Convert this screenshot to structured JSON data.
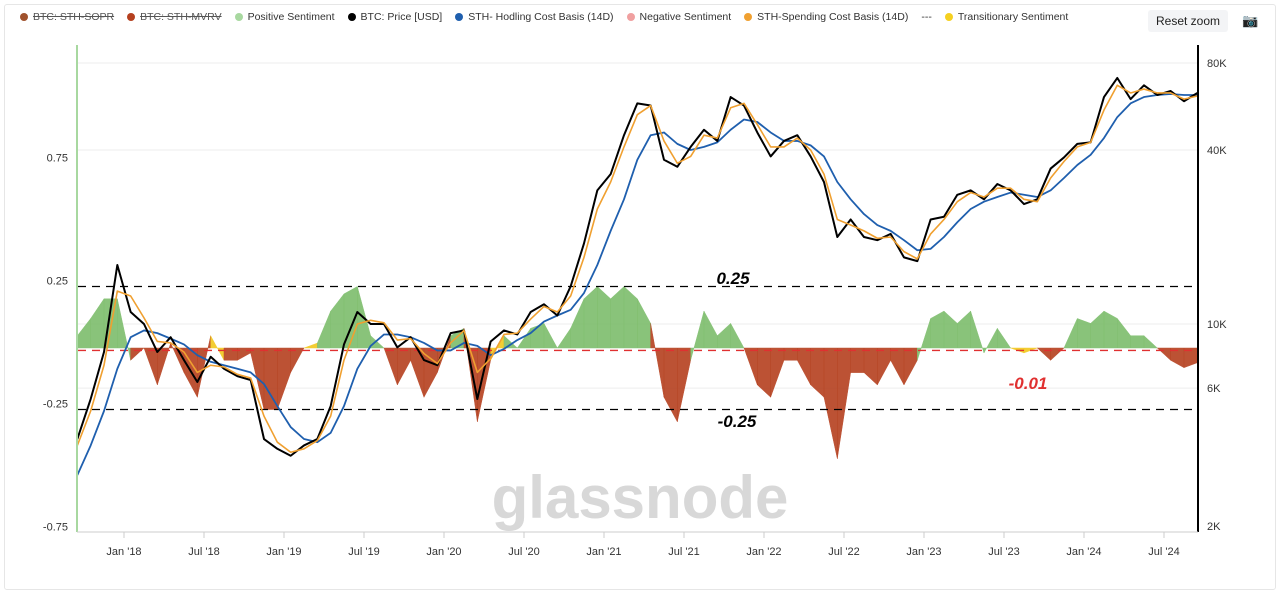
{
  "legend": [
    {
      "label": "BTC: STH-SOPR",
      "color": "#a0522d",
      "hidden": true
    },
    {
      "label": "BTC: STH-MVRV",
      "color": "#b5401f",
      "hidden": true
    },
    {
      "label": "Positive Sentiment",
      "color": "#a8d8a0"
    },
    {
      "label": "BTC: Price [USD]",
      "color": "#000000"
    },
    {
      "label": "STH- Hodling Cost Basis (14D)",
      "color": "#1f5fae"
    },
    {
      "label": "Negative Sentiment",
      "color": "#f0a0a0"
    },
    {
      "label": "STH-Spending Cost Basis (14D)",
      "color": "#f0a030"
    },
    {
      "label": "---",
      "color": ""
    },
    {
      "label": "Transitionary Sentiment",
      "color": "#f5d020"
    }
  ],
  "toolbar": {
    "reset_zoom": "Reset zoom",
    "camera_icon": "camera-icon"
  },
  "watermark": "glassnode",
  "chart_data": {
    "type": "line",
    "start_month": "2017-09",
    "x_ticks": [
      "Jan '18",
      "Jul '18",
      "Jan '19",
      "Jul '19",
      "Jan '20",
      "Jul '20",
      "Jan '21",
      "Jul '21",
      "Jan '22",
      "Jul '22",
      "Jan '23",
      "Jul '23",
      "Jan '24",
      "Jul '24"
    ],
    "left_axis": {
      "ticks": [
        "0.75",
        "0.25",
        "-0.25",
        "-0.75"
      ],
      "values": [
        0.75,
        0.25,
        -0.25,
        -0.75
      ]
    },
    "right_axis": {
      "scale": "log",
      "ticks": [
        "80K",
        "40K",
        "10K",
        "6K",
        "2K"
      ],
      "values": [
        80000,
        40000,
        10000,
        6000,
        2000
      ]
    },
    "reference_lines": [
      {
        "value": 0.25,
        "label": "0.25",
        "color": "#000000"
      },
      {
        "value": -0.25,
        "label": "-0.25",
        "color": "#000000"
      },
      {
        "value": -0.01,
        "label": "-0.01",
        "color": "#e03030"
      }
    ],
    "colors": {
      "positive": "#7dbd6c",
      "negative": "#b5401f",
      "transitional": "#f2c81e",
      "price": "#000000",
      "hodling": "#1f5fae",
      "spending": "#f0a030"
    },
    "price": [
      4000,
      5500,
      8000,
      16000,
      11000,
      10000,
      8000,
      9000,
      7500,
      6300,
      7700,
      7000,
      6600,
      6400,
      4000,
      3700,
      3500,
      3800,
      4000,
      5200,
      8500,
      11000,
      10000,
      10000,
      8300,
      9000,
      7500,
      7200,
      9300,
      9500,
      5500,
      8700,
      9500,
      9200,
      11000,
      11700,
      10700,
      13500,
      19000,
      29000,
      33000,
      45000,
      58000,
      57000,
      37000,
      35000,
      41000,
      47000,
      43000,
      61000,
      57000,
      46000,
      38000,
      43000,
      45000,
      38000,
      31000,
      20000,
      23000,
      20000,
      19500,
      20500,
      17000,
      16500,
      23000,
      23500,
      28000,
      29000,
      27000,
      30500,
      29000,
      26000,
      27000,
      34500,
      37700,
      42000,
      42500,
      61000,
      71000,
      60000,
      67000,
      62000,
      64000,
      59000,
      63000
    ],
    "spending_cost_basis": [
      3800,
      5000,
      7200,
      13000,
      12500,
      10500,
      8700,
      8600,
      8000,
      6800,
      7200,
      7100,
      6700,
      6500,
      4800,
      3900,
      3600,
      3700,
      3950,
      4800,
      7500,
      10000,
      10300,
      10100,
      8800,
      8900,
      7900,
      7300,
      8600,
      9500,
      6800,
      7600,
      9200,
      9300,
      10400,
      11500,
      11000,
      12500,
      17000,
      25000,
      31000,
      41000,
      53000,
      57000,
      43000,
      36000,
      38000,
      45000,
      44000,
      56000,
      58000,
      49000,
      41000,
      41000,
      44000,
      40000,
      33000,
      23000,
      22000,
      21000,
      19800,
      20000,
      17800,
      16800,
      20500,
      23000,
      26500,
      28500,
      27500,
      29500,
      29500,
      27000,
      26500,
      32000,
      36500,
      41000,
      42500,
      55000,
      67000,
      63000,
      65000,
      63000,
      63000,
      60000,
      61500
    ],
    "hodling_cost_basis": [
      3000,
      3800,
      5000,
      7000,
      9000,
      9500,
      9300,
      8900,
      8500,
      7800,
      7400,
      7200,
      7000,
      6800,
      6200,
      5200,
      4400,
      4000,
      3900,
      4200,
      5200,
      7000,
      8400,
      9200,
      9200,
      9000,
      8600,
      8100,
      8100,
      8600,
      8400,
      7800,
      8200,
      8800,
      9300,
      10200,
      10700,
      11200,
      12800,
      16000,
      21000,
      27000,
      37000,
      45000,
      46000,
      42000,
      40000,
      41000,
      42500,
      47000,
      51000,
      50000,
      46000,
      43000,
      43000,
      41500,
      38000,
      31000,
      27000,
      24000,
      22000,
      21000,
      19500,
      18000,
      18200,
      20000,
      22500,
      25000,
      26500,
      27500,
      28500,
      28000,
      27500,
      29000,
      32000,
      35500,
      38500,
      44000,
      52000,
      58000,
      61000,
      62000,
      62500,
      62000,
      62000
    ],
    "sentiment": [
      0.05,
      0.12,
      0.2,
      0.2,
      -0.05,
      0.0,
      -0.15,
      0.02,
      -0.1,
      -0.2,
      0.05,
      -0.05,
      -0.05,
      -0.02,
      -0.25,
      -0.25,
      -0.1,
      0.0,
      0.02,
      0.15,
      0.22,
      0.25,
      0.05,
      0.0,
      -0.15,
      -0.05,
      -0.2,
      -0.1,
      0.05,
      0.08,
      -0.3,
      -0.05,
      0.05,
      0.0,
      0.08,
      0.1,
      0.0,
      0.08,
      0.2,
      0.25,
      0.2,
      0.25,
      0.2,
      0.1,
      -0.2,
      -0.3,
      -0.05,
      0.15,
      0.05,
      0.1,
      0.0,
      -0.15,
      -0.2,
      -0.05,
      -0.05,
      -0.15,
      -0.2,
      -0.45,
      -0.1,
      -0.1,
      -0.15,
      -0.05,
      -0.15,
      -0.05,
      0.12,
      0.15,
      0.1,
      0.15,
      -0.02,
      0.08,
      0.0,
      -0.02,
      0.0,
      -0.05,
      0.0,
      0.12,
      0.1,
      0.15,
      0.12,
      0.05,
      0.05,
      0.0,
      -0.05,
      -0.08,
      -0.06
    ]
  }
}
